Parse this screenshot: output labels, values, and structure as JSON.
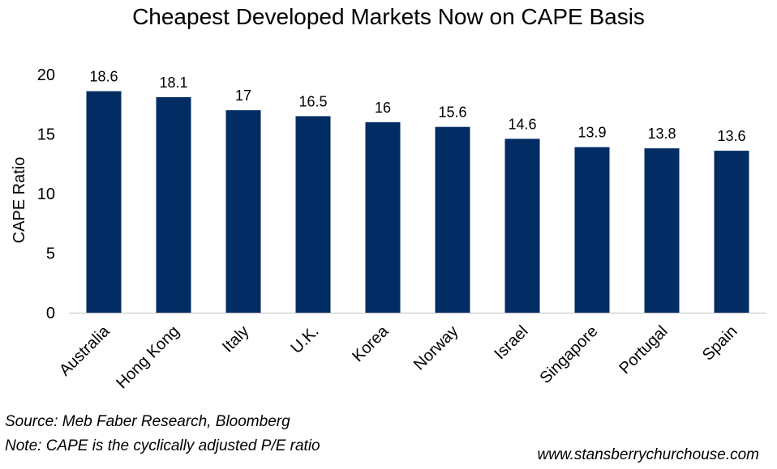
{
  "chart_data": {
    "type": "bar",
    "title": "Cheapest Developed Markets Now on CAPE Basis",
    "xlabel": "",
    "ylabel": "CAPE Ratio",
    "categories": [
      "Australia",
      "Hong Kong",
      "Italy",
      "U.K.",
      "Korea",
      "Norway",
      "Israel",
      "Singapore",
      "Portugal",
      "Spain"
    ],
    "values": [
      18.6,
      18.1,
      17,
      16.5,
      16,
      15.6,
      14.6,
      13.9,
      13.8,
      13.6
    ],
    "value_labels": [
      "18.6",
      "18.1",
      "17",
      "16.5",
      "16",
      "15.6",
      "14.6",
      "13.9",
      "13.8",
      "13.6"
    ],
    "ylim": [
      0,
      20
    ],
    "yticks": [
      0,
      5,
      10,
      15,
      20
    ],
    "grid": false,
    "bar_color": "#022C64"
  },
  "footer": {
    "source": "Source: Meb Faber Research, Bloomberg",
    "note": "Note: CAPE is the cyclically adjusted P/E ratio",
    "website": "www.stansberrychurchouse.com"
  }
}
